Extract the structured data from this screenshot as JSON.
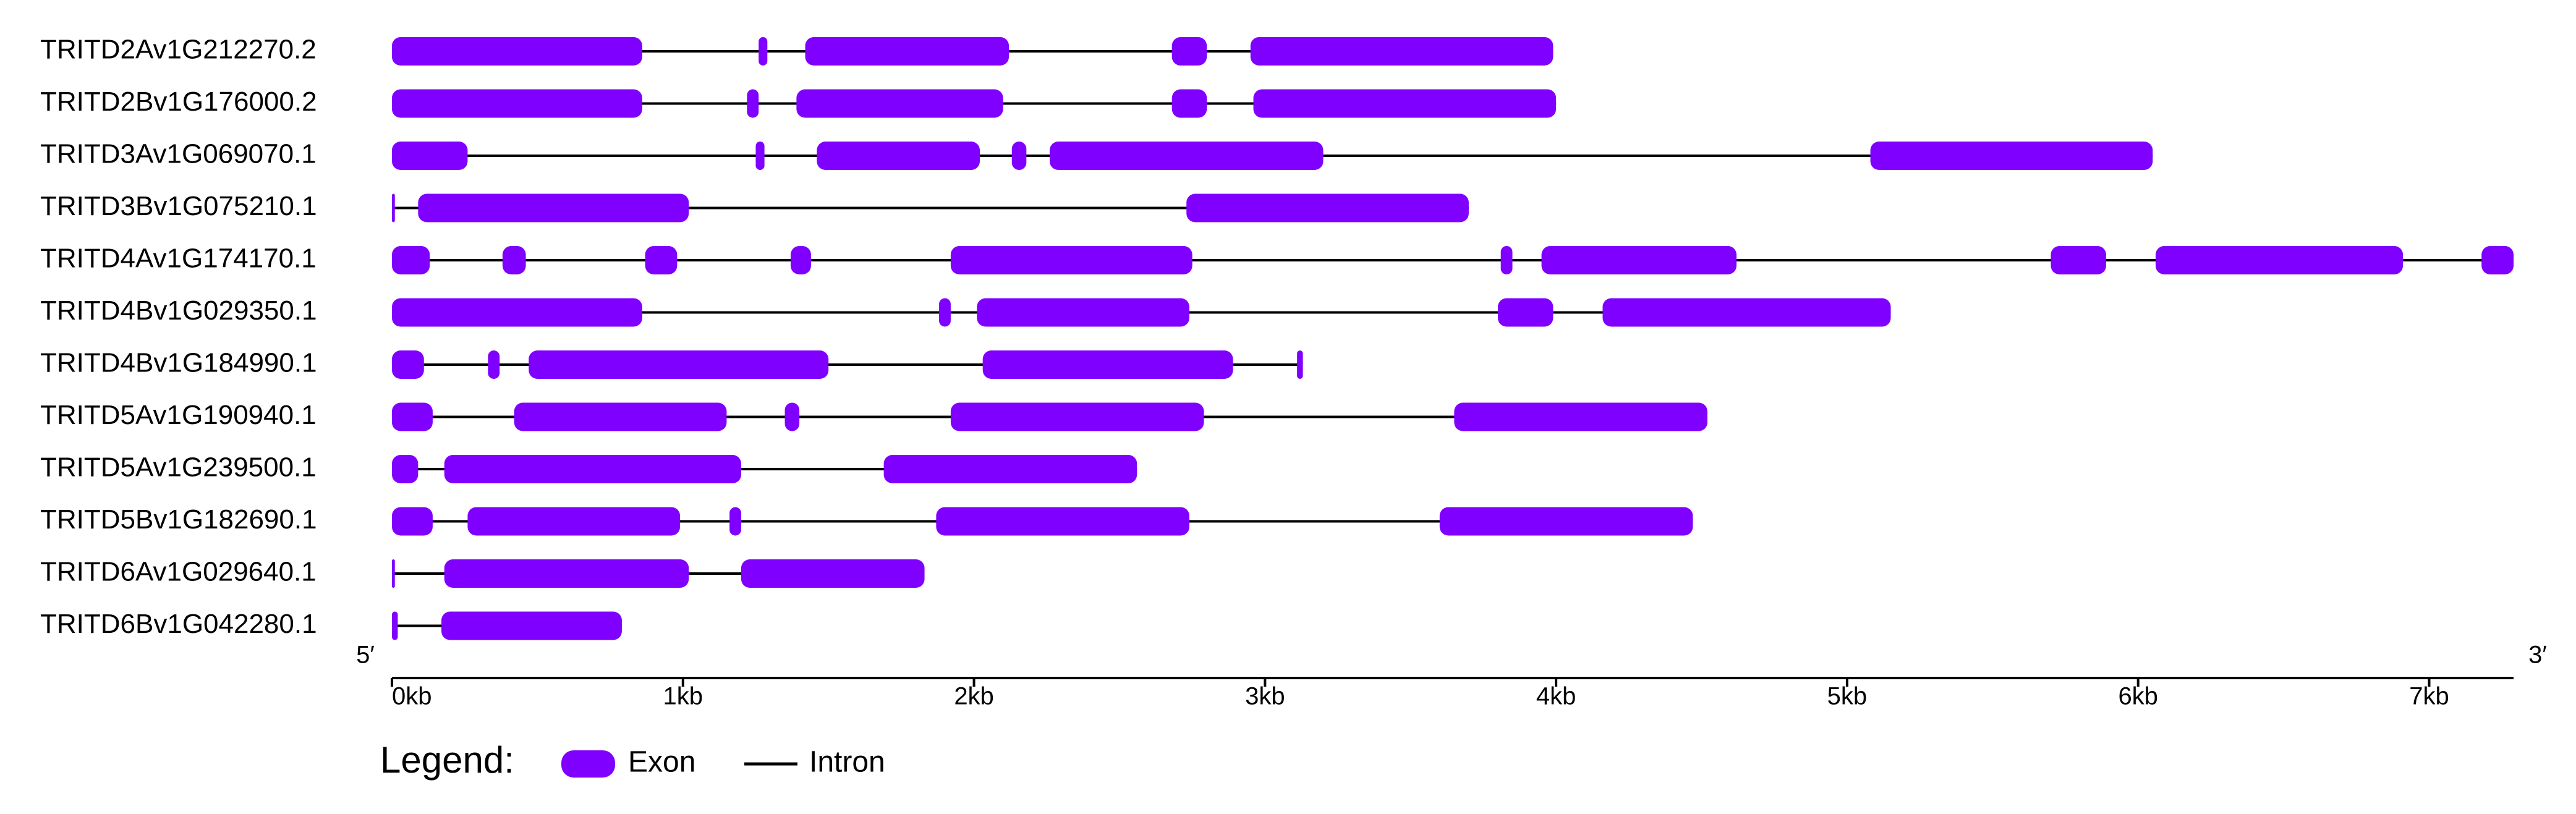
{
  "chart_data": {
    "type": "gene-structure",
    "color": "#8000ff",
    "intron_color": "#000000",
    "xlim": [
      0,
      7.29
    ],
    "xticks": [
      {
        "value": 0,
        "label": "0kb"
      },
      {
        "value": 1,
        "label": "1kb"
      },
      {
        "value": 2,
        "label": "2kb"
      },
      {
        "value": 3,
        "label": "3kb"
      },
      {
        "value": 4,
        "label": "4kb"
      },
      {
        "value": 5,
        "label": "5kb"
      },
      {
        "value": 6,
        "label": "6kb"
      },
      {
        "value": 7,
        "label": "7kb"
      }
    ],
    "start_label": "5′",
    "end_label": "3′",
    "legend": {
      "title": "Legend:",
      "exon": "Exon",
      "intron": "Intron"
    },
    "genes": [
      {
        "name": "TRITD2Av1G212270.2",
        "exons": [
          [
            0,
            0.86
          ],
          [
            1.26,
            1.29
          ],
          [
            1.42,
            2.12
          ],
          [
            2.68,
            2.8
          ],
          [
            2.95,
            3.99
          ]
        ]
      },
      {
        "name": "TRITD2Bv1G176000.2",
        "exons": [
          [
            0,
            0.86
          ],
          [
            1.22,
            1.26
          ],
          [
            1.39,
            2.1
          ],
          [
            2.68,
            2.8
          ],
          [
            2.96,
            4.0
          ]
        ]
      },
      {
        "name": "TRITD3Av1G069070.1",
        "exons": [
          [
            0,
            0.26
          ],
          [
            1.25,
            1.28
          ],
          [
            1.46,
            2.02
          ],
          [
            2.13,
            2.18
          ],
          [
            2.26,
            3.2
          ],
          [
            5.08,
            6.05
          ]
        ]
      },
      {
        "name": "TRITD3Bv1G075210.1",
        "exons": [
          [
            0,
            0.01
          ],
          [
            0.09,
            1.02
          ],
          [
            2.73,
            3.7
          ]
        ]
      },
      {
        "name": "TRITD4Av1G174170.1",
        "exons": [
          [
            0,
            0.13
          ],
          [
            0.38,
            0.46
          ],
          [
            0.87,
            0.98
          ],
          [
            1.37,
            1.44
          ],
          [
            1.92,
            2.75
          ],
          [
            3.81,
            3.85
          ],
          [
            3.95,
            4.62
          ],
          [
            5.7,
            5.89
          ],
          [
            6.06,
            6.91
          ],
          [
            7.18,
            7.29
          ]
        ]
      },
      {
        "name": "TRITD4Bv1G029350.1",
        "exons": [
          [
            0,
            0.86
          ],
          [
            1.88,
            1.92
          ],
          [
            2.01,
            2.74
          ],
          [
            3.8,
            3.99
          ],
          [
            4.16,
            5.15
          ]
        ]
      },
      {
        "name": "TRITD4Bv1G184990.1",
        "exons": [
          [
            0,
            0.11
          ],
          [
            0.33,
            0.37
          ],
          [
            0.47,
            1.5
          ],
          [
            2.03,
            2.89
          ],
          [
            3.11,
            3.13
          ]
        ]
      },
      {
        "name": "TRITD5Av1G190940.1",
        "exons": [
          [
            0,
            0.14
          ],
          [
            0.42,
            1.15
          ],
          [
            1.35,
            1.4
          ],
          [
            1.92,
            2.79
          ],
          [
            3.65,
            4.52
          ]
        ]
      },
      {
        "name": "TRITD5Av1G239500.1",
        "exons": [
          [
            0,
            0.09
          ],
          [
            0.18,
            1.2
          ],
          [
            1.69,
            2.56
          ]
        ]
      },
      {
        "name": "TRITD5Bv1G182690.1",
        "exons": [
          [
            0,
            0.14
          ],
          [
            0.26,
            0.99
          ],
          [
            1.16,
            1.2
          ],
          [
            1.87,
            2.74
          ],
          [
            3.6,
            4.47
          ]
        ]
      },
      {
        "name": "TRITD6Av1G029640.1",
        "exons": [
          [
            0,
            0.01
          ],
          [
            0.18,
            1.02
          ],
          [
            1.2,
            1.83
          ]
        ]
      },
      {
        "name": "TRITD6Bv1G042280.1",
        "exons": [
          [
            0,
            0.02
          ],
          [
            0.17,
            0.79
          ]
        ]
      }
    ]
  }
}
